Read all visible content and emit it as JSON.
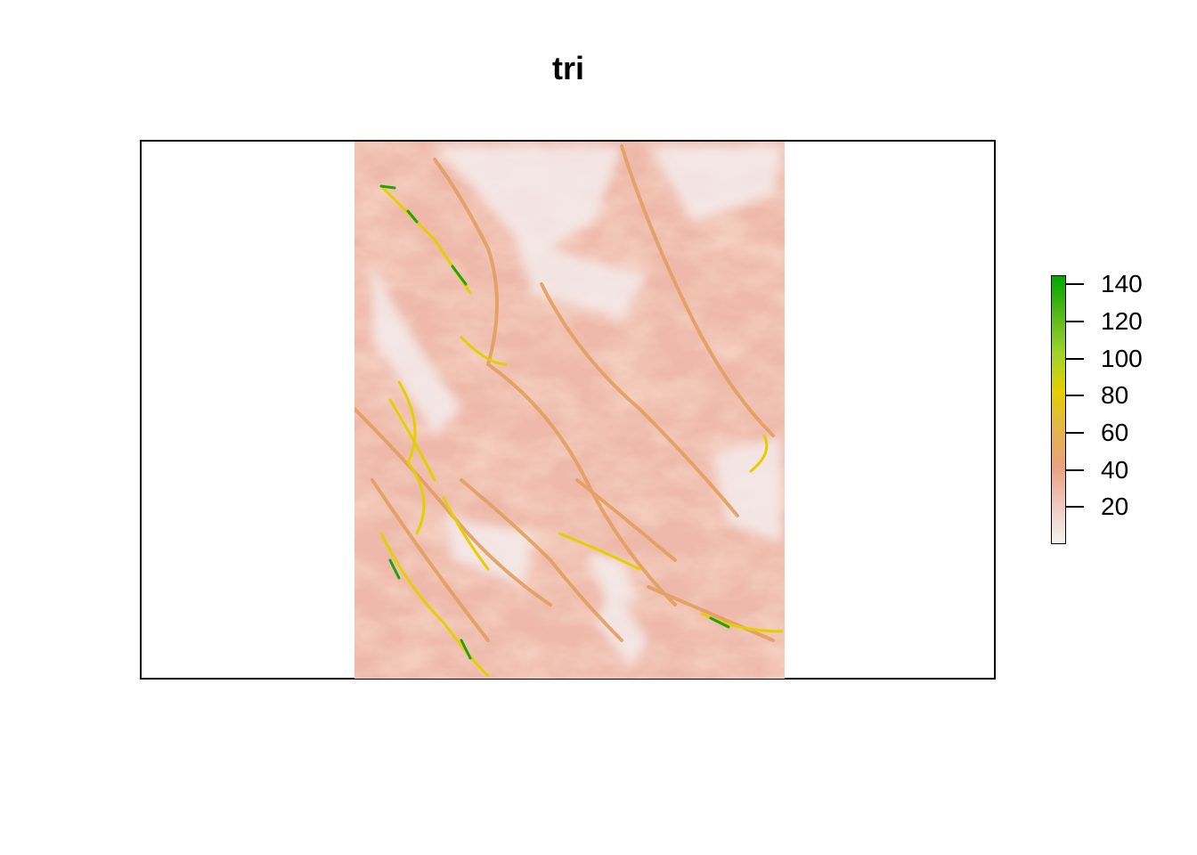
{
  "title": "tri",
  "chart_data": {
    "type": "heatmap",
    "title": "tri",
    "xlabel": "",
    "ylabel": "",
    "value_range": [
      0,
      145
    ],
    "colorbar": {
      "ticks": [
        20,
        40,
        60,
        80,
        100,
        120,
        140
      ],
      "tick_labels": [
        "20",
        "40",
        "60",
        "80",
        "100",
        "120",
        "140"
      ],
      "colors": [
        "#f2f2f2",
        "#f0c9c0",
        "#eaa17d",
        "#e4b54a",
        "#e3d000",
        "#9ed32b",
        "#56b81a",
        "#00a600"
      ]
    },
    "legend_position": "right",
    "grid": false,
    "axes_shown": false
  },
  "colors": {
    "low": "#f2f2f2",
    "mid": "#e8a47a",
    "high_yellow": "#e3d000",
    "high_green": "#00a600"
  }
}
